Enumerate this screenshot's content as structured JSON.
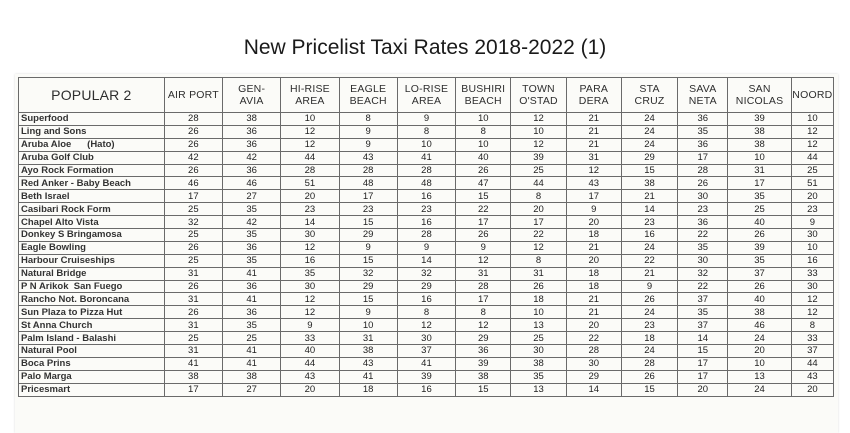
{
  "title": "New Pricelist Taxi Rates 2018-2022 (1)",
  "table": {
    "corner": "POPULAR 2",
    "columns": [
      [
        "AIR PORT"
      ],
      [
        "GEN-",
        "AVIA"
      ],
      [
        "HI-RISE",
        "AREA"
      ],
      [
        "EAGLE",
        "BEACH"
      ],
      [
        "LO-RISE",
        "AREA"
      ],
      [
        "BUSHIRI",
        "BEACH"
      ],
      [
        "TOWN",
        "O'STAD"
      ],
      [
        "PARA",
        "DERA"
      ],
      [
        "STA",
        "CRUZ"
      ],
      [
        "SAVA",
        "NETA"
      ],
      [
        "SAN",
        "NICOLAS"
      ],
      [
        "NOORD"
      ]
    ],
    "rows": [
      {
        "name": "Superfood",
        "v": [
          "28",
          "38",
          "10",
          "8",
          "9",
          "10",
          "12",
          "21",
          "24",
          "36",
          "39",
          "10"
        ]
      },
      {
        "name": "Ling and Sons",
        "v": [
          "26",
          "36",
          "12",
          "9",
          "8",
          "8",
          "10",
          "21",
          "24",
          "35",
          "38",
          "12"
        ]
      },
      {
        "name": "Aruba Aloe      (Hato)",
        "v": [
          "26",
          "36",
          "12",
          "9",
          "10",
          "10",
          "12",
          "21",
          "24",
          "36",
          "38",
          "12"
        ]
      },
      {
        "name": "Aruba Golf Club",
        "v": [
          "42",
          "42",
          "44",
          "43",
          "41",
          "40",
          "39",
          "31",
          "29",
          "17",
          "10",
          "44"
        ]
      },
      {
        "name": "Ayo Rock Formation",
        "v": [
          "26",
          "36",
          "28",
          "28",
          "28",
          "26",
          "25",
          "12",
          "15",
          "28",
          "31",
          "25"
        ]
      },
      {
        "name": "Red Anker - Baby Beach",
        "v": [
          "46",
          "46",
          "51",
          "48",
          "48",
          "47",
          "44",
          "43",
          "38",
          "26",
          "17",
          "51"
        ]
      },
      {
        "name": "Beth Israel",
        "v": [
          "17",
          "27",
          "20",
          "17",
          "16",
          "15",
          "8",
          "17",
          "21",
          "30",
          "35",
          "20"
        ]
      },
      {
        "name": "Casibari Rock Form",
        "v": [
          "25",
          "35",
          "23",
          "23",
          "23",
          "22",
          "20",
          "9",
          "14",
          "23",
          "25",
          "23"
        ]
      },
      {
        "name": "Chapel Alto Vista",
        "v": [
          "32",
          "42",
          "14",
          "15",
          "16",
          "17",
          "17",
          "20",
          "23",
          "36",
          "40",
          "9"
        ]
      },
      {
        "name": "Donkey S Bringamosa",
        "v": [
          "25",
          "35",
          "30",
          "29",
          "28",
          "26",
          "22",
          "18",
          "16",
          "22",
          "26",
          "30"
        ]
      },
      {
        "name": "Eagle Bowling",
        "v": [
          "26",
          "36",
          "12",
          "9",
          "9",
          "9",
          "12",
          "21",
          "24",
          "35",
          "39",
          "10"
        ]
      },
      {
        "name": "Harbour Cruiseships",
        "v": [
          "25",
          "35",
          "16",
          "15",
          "14",
          "12",
          "8",
          "20",
          "22",
          "30",
          "35",
          "16"
        ]
      },
      {
        "name": "Natural Bridge",
        "v": [
          "31",
          "41",
          "35",
          "32",
          "32",
          "31",
          "31",
          "18",
          "21",
          "32",
          "37",
          "33"
        ]
      },
      {
        "name": "P N Arikok  San Fuego",
        "v": [
          "26",
          "36",
          "30",
          "29",
          "29",
          "28",
          "26",
          "18",
          "9",
          "22",
          "26",
          "30"
        ]
      },
      {
        "name": "Rancho Not. Boroncana",
        "v": [
          "31",
          "41",
          "12",
          "15",
          "16",
          "17",
          "18",
          "21",
          "26",
          "37",
          "40",
          "12"
        ]
      },
      {
        "name": "Sun Plaza to Pizza Hut",
        "v": [
          "26",
          "36",
          "12",
          "9",
          "8",
          "8",
          "10",
          "21",
          "24",
          "35",
          "38",
          "12"
        ]
      },
      {
        "name": "St Anna Church",
        "v": [
          "31",
          "35",
          "9",
          "10",
          "12",
          "12",
          "13",
          "20",
          "23",
          "37",
          "46",
          "8"
        ]
      },
      {
        "name": "Palm Island - Balashi",
        "v": [
          "25",
          "25",
          "33",
          "31",
          "30",
          "29",
          "25",
          "22",
          "18",
          "14",
          "24",
          "33"
        ]
      },
      {
        "name": "Natural Pool",
        "v": [
          "31",
          "41",
          "40",
          "38",
          "37",
          "36",
          "30",
          "28",
          "24",
          "15",
          "20",
          "37"
        ]
      },
      {
        "name": "Boca Prins",
        "v": [
          "41",
          "41",
          "44",
          "43",
          "41",
          "39",
          "38",
          "30",
          "28",
          "17",
          "10",
          "44"
        ]
      },
      {
        "name": "Palo Marga",
        "v": [
          "38",
          "38",
          "43",
          "41",
          "39",
          "38",
          "35",
          "29",
          "26",
          "17",
          "13",
          "43"
        ]
      },
      {
        "name": "Pricesmart",
        "v": [
          "17",
          "27",
          "20",
          "18",
          "16",
          "15",
          "13",
          "14",
          "15",
          "20",
          "24",
          "20"
        ]
      }
    ]
  }
}
